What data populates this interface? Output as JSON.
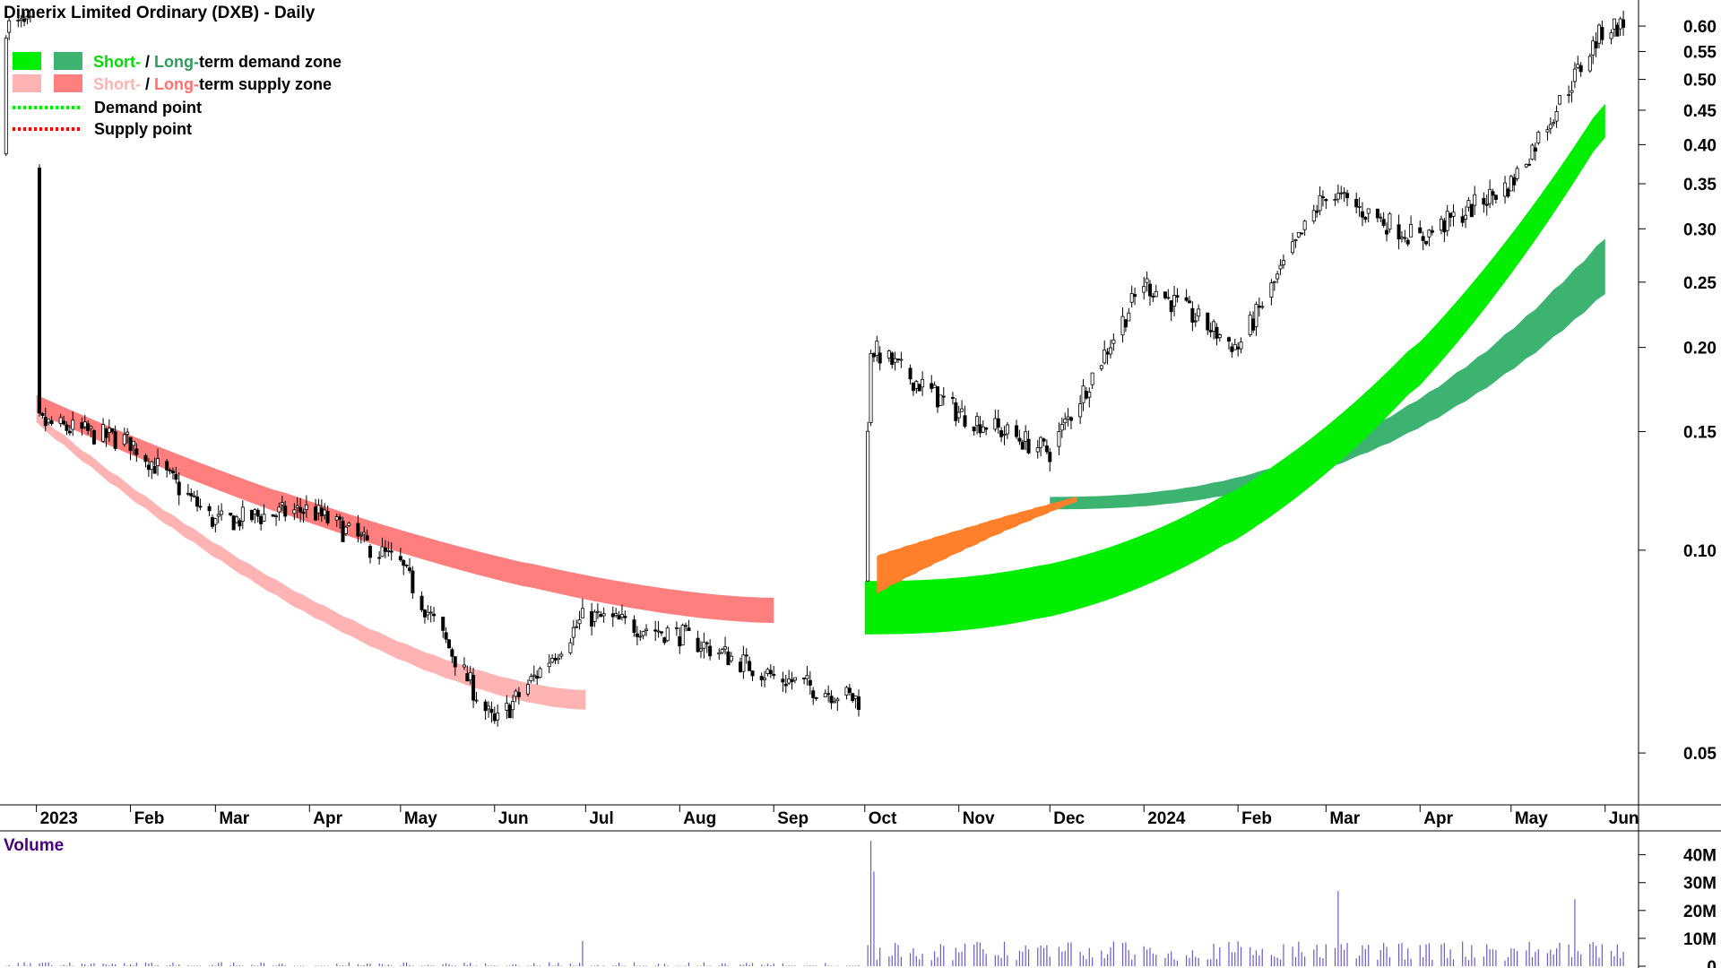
{
  "title": "Dimerix Limited Ordinary (DXB) - Daily",
  "legend": [
    {
      "kind": "zone",
      "short_label": "Short-",
      "sep": " / ",
      "long_label": "Long-",
      "rest": "term demand zone",
      "short_color": "#00ee00",
      "long_color": "#3cb371"
    },
    {
      "kind": "zone",
      "short_label": "Short-",
      "sep": " / ",
      "long_label": "Long-",
      "rest": "term supply zone",
      "short_color": "#ffb3b3",
      "long_color": "#ff7f7f"
    },
    {
      "kind": "line",
      "label": "Demand point",
      "color": "#00ee00"
    },
    {
      "kind": "line",
      "label": "Supply point",
      "color": "#ff0000"
    }
  ],
  "volume_label": "Volume",
  "colors": {
    "short_demand": "#00ee00",
    "long_demand": "#3cb371",
    "short_supply": "#ffb3b3",
    "long_supply": "#ff7f7f",
    "transition": "#ff7f2a",
    "volume": "#6a5acd",
    "volume_label": "#4b0082"
  },
  "chart_data": [
    {
      "type": "candlestick",
      "title": "Dimerix Limited Ordinary (DXB) - Daily",
      "y_scale": "log",
      "ylim": [
        0.042,
        0.64
      ],
      "y_ticks": [
        "0.05",
        "0.10",
        "0.15",
        "0.20",
        "0.25",
        "0.30",
        "0.35",
        "0.40",
        "0.45",
        "0.50",
        "0.55",
        "0.60"
      ],
      "x_ticks": [
        "2023",
        "Feb",
        "Mar",
        "Apr",
        "May",
        "Jun",
        "Jul",
        "Aug",
        "Sep",
        "Oct",
        "Nov",
        "Dec",
        "2024",
        "Feb",
        "Mar",
        "Apr",
        "May",
        "Jun"
      ],
      "close_path": [
        [
          "2023-01",
          0.155
        ],
        [
          "2023-02",
          0.145
        ],
        [
          "2023-03",
          0.11
        ],
        [
          "2023-04",
          0.115
        ],
        [
          "2023-05",
          0.095
        ],
        [
          "2023-06",
          0.055
        ],
        [
          "2023-07",
          0.08
        ],
        [
          "2023-08",
          0.075
        ],
        [
          "2023-09",
          0.065
        ],
        [
          "2023-09-29",
          0.06
        ],
        [
          "2023-10-03",
          0.2
        ],
        [
          "2023-11",
          0.16
        ],
        [
          "2023-12",
          0.14
        ],
        [
          "2024-01",
          0.25
        ],
        [
          "2024-02",
          0.2
        ],
        [
          "2024-03",
          0.34
        ],
        [
          "2024-04",
          0.29
        ],
        [
          "2024-05",
          0.35
        ],
        [
          "2024-06",
          0.6
        ]
      ],
      "zones": [
        {
          "name": "Long-term supply zone",
          "from": "2023-01",
          "to": "2023-09",
          "band": [
            [
              0.17,
              0.16
            ],
            [
              0.085,
              0.078
            ]
          ]
        },
        {
          "name": "Short-term supply zone",
          "from": "2023-01",
          "to": "2023-07",
          "band": [
            [
              0.16,
              0.155
            ],
            [
              0.062,
              0.058
            ]
          ]
        },
        {
          "name": "Long-term demand zone",
          "from": "2023-12",
          "to": "2024-06",
          "band": [
            [
              0.12,
              0.115
            ],
            [
              0.29,
              0.24
            ]
          ]
        },
        {
          "name": "Short-term demand zone",
          "from": "2023-10",
          "to": "2024-06",
          "band": [
            [
              0.09,
              0.075
            ],
            [
              0.46,
              0.41
            ]
          ]
        }
      ]
    },
    {
      "type": "bar",
      "title": "Volume",
      "y_ticks": [
        "0",
        "10M",
        "20M",
        "30M",
        "40M"
      ],
      "ylim": [
        0,
        46000000
      ],
      "peaks": [
        {
          "date": "2023-10-03",
          "value": 45000000
        },
        {
          "date": "2024-03",
          "value": 27000000
        },
        {
          "date": "2024-05",
          "value": 24000000
        }
      ]
    }
  ]
}
